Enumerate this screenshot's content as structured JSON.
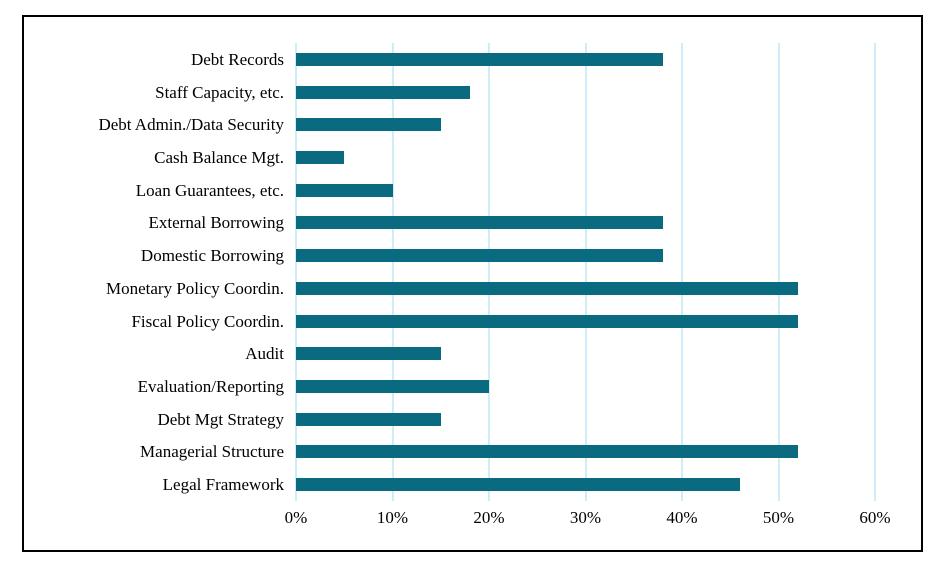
{
  "chart_data": {
    "type": "bar",
    "orientation": "horizontal",
    "title": "",
    "xlabel": "",
    "ylabel": "",
    "categories": [
      "Debt Records",
      "Staff Capacity, etc.",
      "Debt Admin./Data Security",
      "Cash Balance Mgt.",
      "Loan Guarantees, etc.",
      "External Borrowing",
      "Domestic Borrowing",
      "Monetary Policy Coordin.",
      "Fiscal Policy Coordin.",
      "Audit",
      "Evaluation/Reporting",
      "Debt Mgt Strategy",
      "Managerial Structure",
      "Legal Framework"
    ],
    "values": [
      38,
      18,
      15,
      5,
      10,
      38,
      38,
      52,
      52,
      15,
      20,
      15,
      52,
      46
    ],
    "value_unit": "%",
    "xlim": [
      0,
      60
    ],
    "x_ticks": [
      "0%",
      "10%",
      "20%",
      "30%",
      "40%",
      "50%",
      "60%"
    ],
    "x_tick_values": [
      0,
      10,
      20,
      30,
      40,
      50,
      60
    ],
    "grid": true,
    "legend": false,
    "colors": {
      "bar": "#0a6a7f",
      "gridline": "#cdeef8",
      "border": "#000000",
      "background": "#ffffff",
      "text": "#000000"
    }
  }
}
